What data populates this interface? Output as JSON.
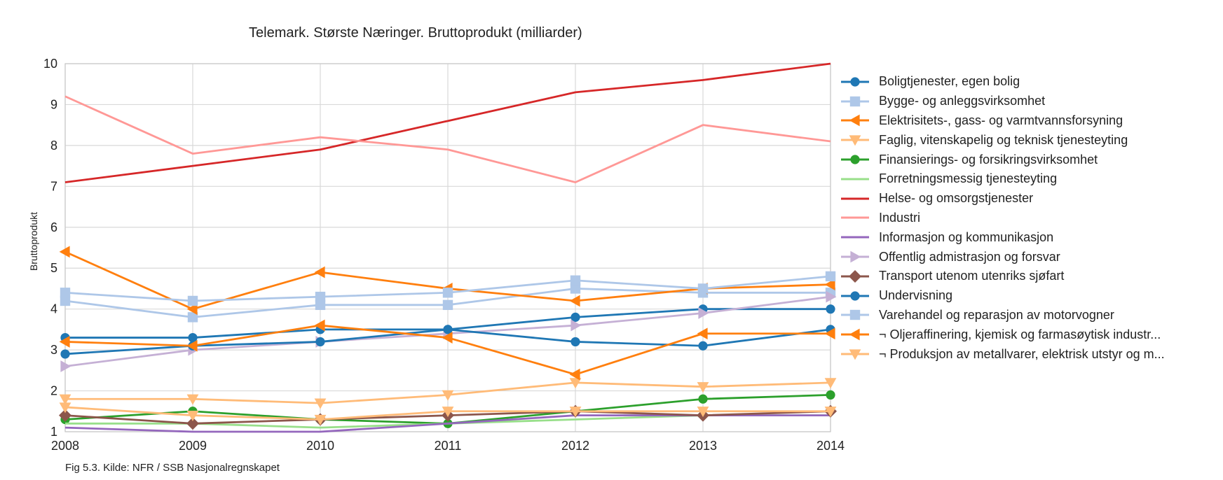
{
  "chart_data": {
    "type": "line",
    "title": "Telemark. Største Næringer. Bruttoprodukt (milliarder)",
    "ylabel": "Bruttoprodukt",
    "xlabel": "",
    "caption": "Fig 5.3. Kilde: NFR / SSB Nasjonalregnskapet",
    "x": [
      "2008",
      "2009",
      "2010",
      "2011",
      "2012",
      "2013",
      "2014"
    ],
    "ylim": [
      1,
      10
    ],
    "yticks": [
      "1",
      "2",
      "3",
      "4",
      "5",
      "6",
      "7",
      "8",
      "9",
      "10"
    ],
    "grid": true,
    "legend_position": "right",
    "series": [
      {
        "name": "Boligtjenester, egen bolig",
        "color": "#1f77b4",
        "marker": "circle",
        "values": [
          3.3,
          3.3,
          3.5,
          3.5,
          3.8,
          4.0,
          4.0
        ]
      },
      {
        "name": "Bygge- og anleggsvirksomhet",
        "color": "#aec7e8",
        "marker": "square",
        "values": [
          4.2,
          3.8,
          4.1,
          4.1,
          4.5,
          4.4,
          4.4
        ]
      },
      {
        "name": "Elektrisitets-, gass- og varmtvannsforsyning",
        "color": "#ff7f0e",
        "marker": "triangle-left",
        "values": [
          5.4,
          4.0,
          4.9,
          4.5,
          4.2,
          4.5,
          4.6
        ]
      },
      {
        "name": "Faglig, vitenskapelig og teknisk tjenesteyting",
        "color": "#ffbb78",
        "marker": "triangle-down",
        "values": [
          1.8,
          1.8,
          1.7,
          1.9,
          2.2,
          2.1,
          2.2
        ]
      },
      {
        "name": "Finansierings- og forsikringsvirksomhet",
        "color": "#2ca02c",
        "marker": "circle",
        "values": [
          1.3,
          1.5,
          1.3,
          1.2,
          1.5,
          1.8,
          1.9
        ]
      },
      {
        "name": "Forretningsmessig tjenesteyting",
        "color": "#98df8a",
        "marker": "none",
        "values": [
          1.2,
          1.2,
          1.1,
          1.2,
          1.3,
          1.4,
          1.4
        ]
      },
      {
        "name": "Helse- og omsorgstjenester",
        "color": "#d62728",
        "marker": "none",
        "values": [
          7.1,
          7.5,
          7.9,
          8.6,
          9.3,
          9.6,
          10.0
        ]
      },
      {
        "name": "Industri",
        "color": "#ff9896",
        "marker": "none",
        "values": [
          9.2,
          7.8,
          8.2,
          7.9,
          7.1,
          8.5,
          8.1
        ]
      },
      {
        "name": "Informasjon og kommunikasjon",
        "color": "#9467bd",
        "marker": "none",
        "values": [
          1.1,
          1.0,
          1.0,
          1.2,
          1.4,
          1.4,
          1.4
        ]
      },
      {
        "name": "Offentlig admistrasjon og forsvar",
        "color": "#c5b0d5",
        "marker": "triangle-right",
        "values": [
          2.6,
          3.0,
          3.2,
          3.4,
          3.6,
          3.9,
          4.3
        ]
      },
      {
        "name": "Transport utenom utenriks sjøfart",
        "color": "#8c564b",
        "marker": "diamond",
        "values": [
          1.4,
          1.2,
          1.3,
          1.4,
          1.5,
          1.4,
          1.5
        ]
      },
      {
        "name": "Undervisning",
        "color": "#1f77b4",
        "marker": "circle",
        "values": [
          2.9,
          3.1,
          3.2,
          3.5,
          3.2,
          3.1,
          3.5
        ]
      },
      {
        "name": "Varehandel og reparasjon av motorvogner",
        "color": "#aec7e8",
        "marker": "square",
        "values": [
          4.4,
          4.2,
          4.3,
          4.4,
          4.7,
          4.5,
          4.8
        ]
      },
      {
        "name": "¬ Oljeraffinering, kjemisk og farmasøytisk industr...",
        "color": "#ff7f0e",
        "marker": "triangle-left",
        "values": [
          3.2,
          3.1,
          3.6,
          3.3,
          2.4,
          3.4,
          3.4
        ]
      },
      {
        "name": "¬ Produksjon av metallvarer, elektrisk utstyr og m...",
        "color": "#ffbb78",
        "marker": "triangle-down",
        "values": [
          1.6,
          1.4,
          1.3,
          1.5,
          1.5,
          1.5,
          1.5
        ]
      }
    ]
  }
}
